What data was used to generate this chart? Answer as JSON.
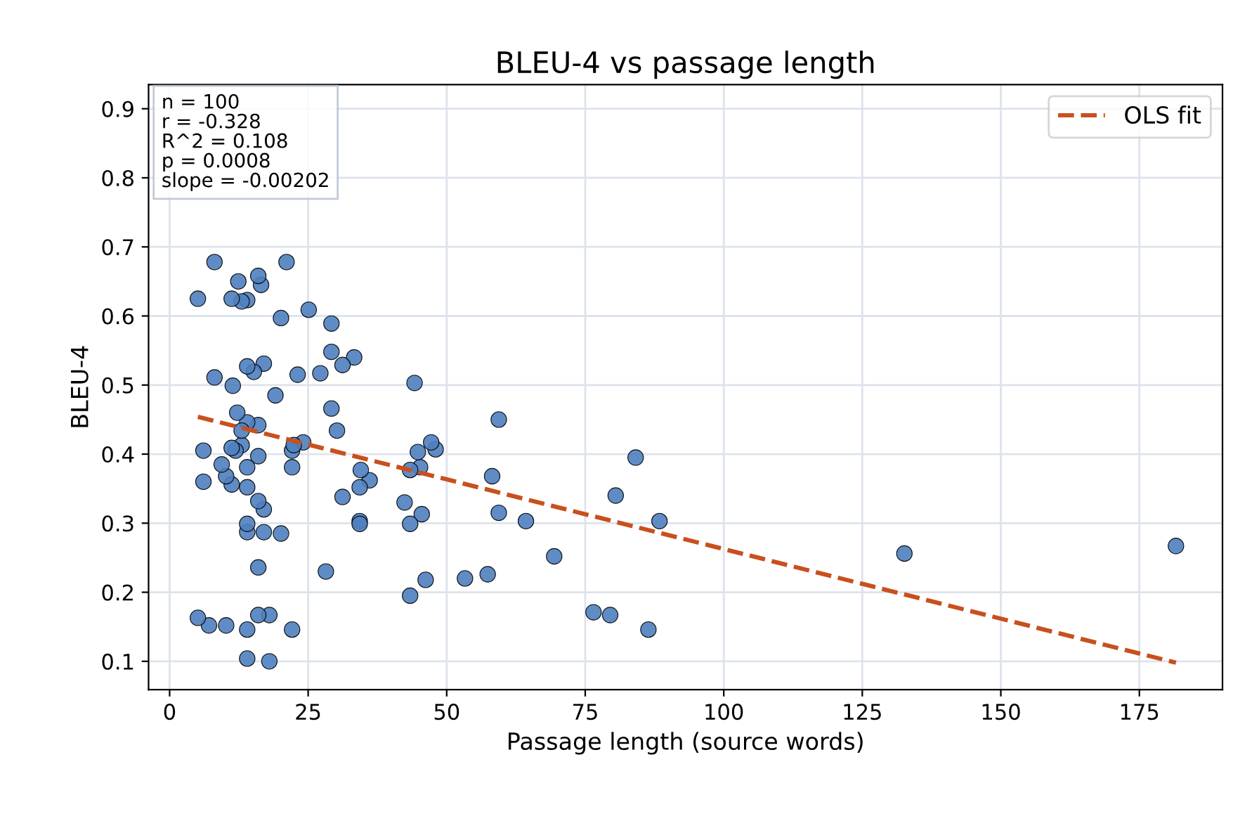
{
  "chart_data": {
    "type": "scatter",
    "title": "BLEU-4 vs passage length",
    "xlabel": "Passage length (source words)",
    "ylabel": "BLEU-4",
    "xlim": [
      -3.8,
      190
    ],
    "ylim": [
      0.059,
      0.935
    ],
    "xticks": [
      0,
      25,
      50,
      75,
      100,
      125,
      150,
      175
    ],
    "yticks": [
      0.1,
      0.2,
      0.3,
      0.4,
      0.5,
      0.6,
      0.7,
      0.8,
      0.9
    ],
    "grid": true,
    "legend": "top right",
    "annotations": [
      "n = 100\nr = -0.328\nR^2 = 0.108\np = 0.0008\nslope = -0.00202"
    ],
    "series": [
      {
        "color": "#4f7fbf",
        "marker": "circle",
        "x": [
          181.6,
          132.6,
          88.4,
          86.4,
          84.1,
          80.5,
          79.5,
          76.5,
          69.4,
          64.3,
          59.4,
          59.4,
          58.2,
          57.4,
          53.3,
          48.0,
          47.2,
          46.2,
          45.5,
          45.2,
          44.8,
          44.2,
          43.4,
          43.4,
          43.4,
          42.4,
          36.1,
          34.3,
          34.3,
          34.3,
          34.5,
          33.3,
          31.2,
          31.2,
          30.2,
          29.2,
          29.2,
          29.2,
          28.2,
          27.2,
          24.1,
          23.1,
          25.1,
          22.1,
          22.1,
          22.1,
          22.4,
          21.1,
          20.1,
          20.1,
          19.1,
          18.0,
          18.0,
          17.0,
          17.0,
          17.0,
          16.5,
          16.0,
          16.0,
          16.0,
          16.0,
          16.0,
          16.0,
          15.2,
          14.0,
          14.0,
          14.0,
          14.0,
          14.0,
          14.0,
          14.0,
          14.0,
          14.0,
          13.0,
          13.0,
          13.0,
          12.4,
          12.2,
          11.9,
          11.2,
          11.4,
          11.2,
          11.2,
          10.2,
          10.2,
          9.4,
          8.1,
          8.1,
          7.1,
          6.1,
          6.1,
          5.1,
          5.1
        ],
        "values": [
          0.267,
          0.256,
          0.303,
          0.146,
          0.395,
          0.34,
          0.167,
          0.171,
          0.252,
          0.303,
          0.45,
          0.315,
          0.368,
          0.226,
          0.22,
          0.407,
          0.417,
          0.218,
          0.313,
          0.381,
          0.403,
          0.503,
          0.195,
          0.299,
          0.377,
          0.33,
          0.362,
          0.352,
          0.303,
          0.299,
          0.377,
          0.54,
          0.529,
          0.338,
          0.434,
          0.466,
          0.548,
          0.589,
          0.23,
          0.517,
          0.417,
          0.515,
          0.609,
          0.381,
          0.405,
          0.146,
          0.413,
          0.678,
          0.597,
          0.285,
          0.485,
          0.167,
          0.1,
          0.32,
          0.287,
          0.531,
          0.645,
          0.658,
          0.442,
          0.397,
          0.332,
          0.236,
          0.167,
          0.519,
          0.104,
          0.146,
          0.287,
          0.299,
          0.527,
          0.623,
          0.352,
          0.381,
          0.446,
          0.621,
          0.413,
          0.434,
          0.65,
          0.46,
          0.405,
          0.625,
          0.499,
          0.356,
          0.409,
          0.152,
          0.368,
          0.385,
          0.678,
          0.511,
          0.152,
          0.405,
          0.36,
          0.625,
          0.163
        ]
      },
      {
        "type": "line",
        "name": "OLS fit",
        "color": "#c8501e",
        "line_style": "dashed",
        "x": [
          5.1,
          181.6
        ],
        "values": [
          0.454,
          0.098
        ]
      }
    ]
  }
}
